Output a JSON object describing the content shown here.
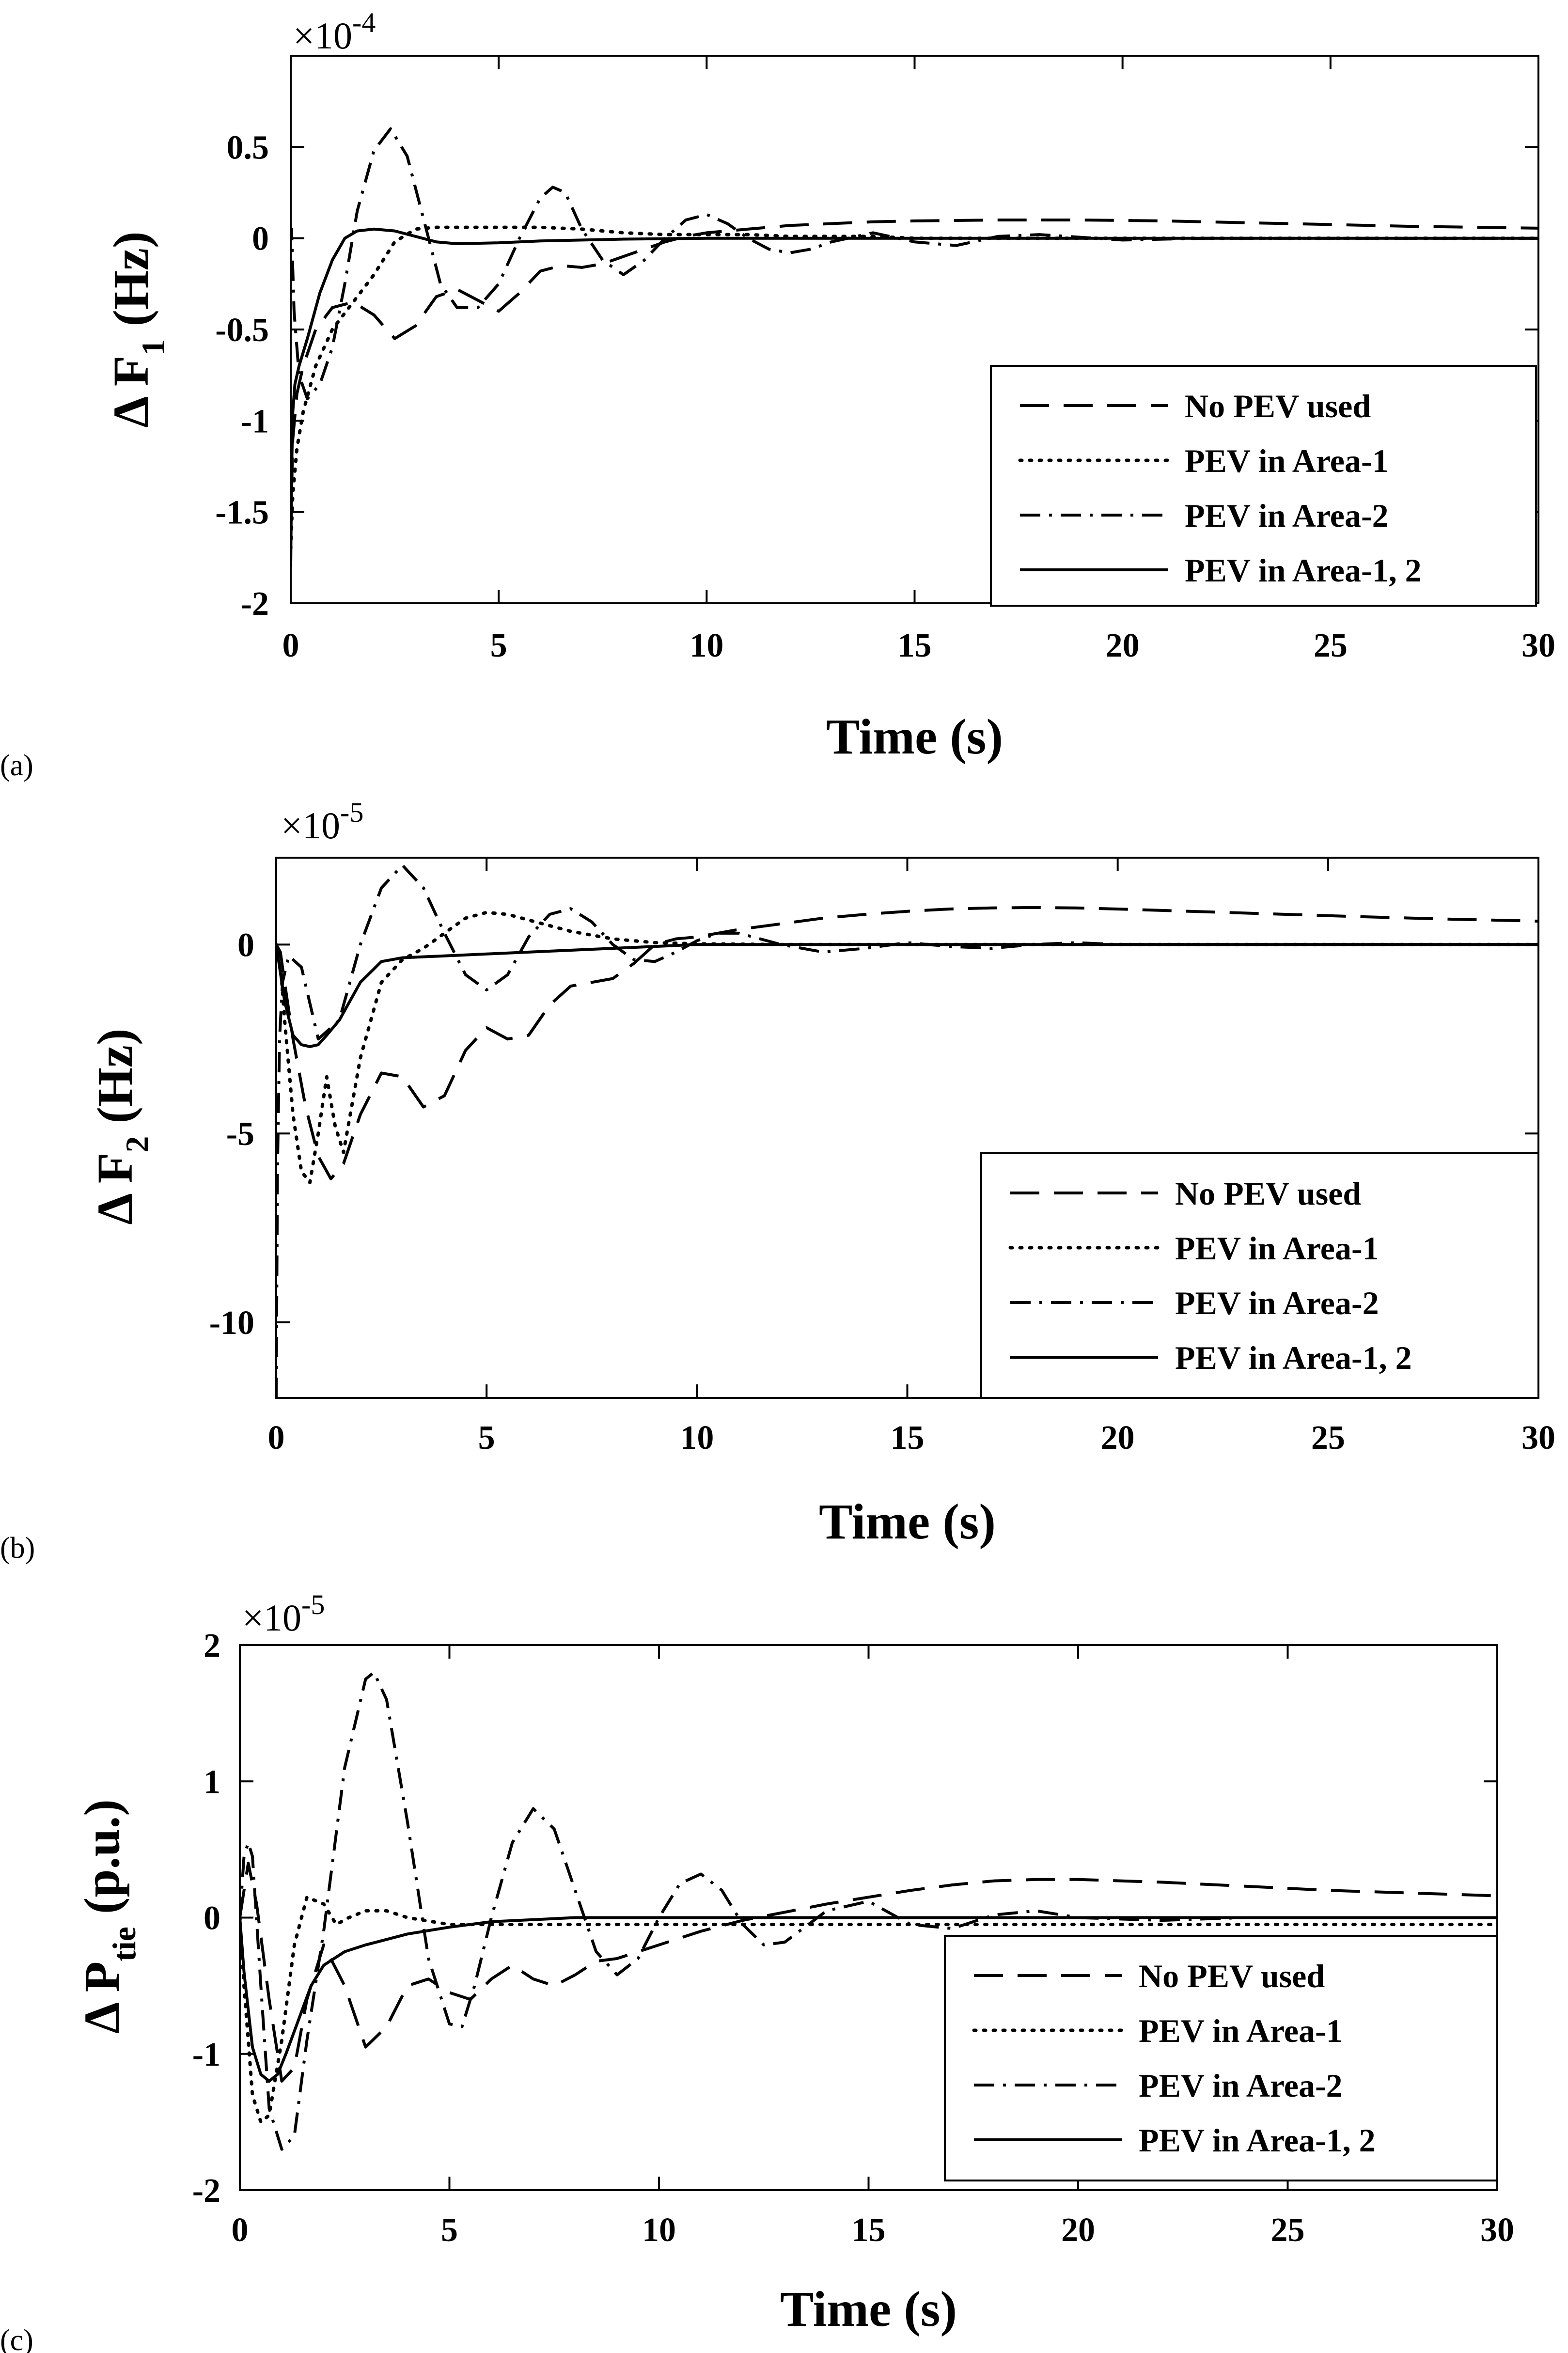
{
  "figure": {
    "line_styles": {
      "No PEV used": "dash",
      "PEV in Area-1": "dot",
      "PEV in Area-2": "dashdot",
      "PEV in Area-1, 2": "solid"
    }
  },
  "chart_data": [
    {
      "type": "line",
      "panel_label": "(a)",
      "xlabel": "Time (s)",
      "ylabel_main": "Δ F",
      "ylabel_sub": "1",
      "ylabel_unit": " (Hz)",
      "multiplier_base": "×10",
      "multiplier_exp": "-4",
      "xlim": [
        0,
        30
      ],
      "ylim": [
        -2,
        1
      ],
      "xticks": [
        0,
        5,
        10,
        15,
        20,
        25,
        30
      ],
      "yticks": [
        -2,
        -1.5,
        -1,
        -0.5,
        0,
        0.5
      ],
      "ytick_labels": [
        "-2",
        "-1.5",
        "-1",
        "-0.5",
        "0",
        "0.5"
      ],
      "legend": [
        "No PEV used",
        "PEV in Area-1",
        "PEV in Area-2",
        "PEV in Area-1, 2"
      ],
      "series": [
        {
          "name": "No PEV used",
          "style": "dash",
          "x": [
            0,
            0.05,
            0.15,
            0.3,
            0.6,
            1.0,
            1.5,
            2.0,
            2.5,
            3.0,
            3.5,
            4.0,
            4.5,
            5.0,
            5.5,
            6.0,
            6.5,
            7.0,
            7.5,
            8.0,
            8.5,
            9.0,
            9.5,
            10,
            11,
            12,
            13,
            14,
            15,
            17,
            19,
            21,
            23,
            25,
            27,
            30
          ],
          "y": [
            -1.6,
            -1.1,
            -0.85,
            -0.7,
            -0.5,
            -0.38,
            -0.35,
            -0.42,
            -0.55,
            -0.48,
            -0.32,
            -0.28,
            -0.34,
            -0.4,
            -0.3,
            -0.18,
            -0.15,
            -0.16,
            -0.14,
            -0.1,
            -0.06,
            -0.02,
            0.01,
            0.03,
            0.05,
            0.07,
            0.08,
            0.09,
            0.095,
            0.1,
            0.1,
            0.095,
            0.085,
            0.075,
            0.065,
            0.055
          ]
        },
        {
          "name": "PEV in Area-1",
          "style": "dot",
          "x": [
            0,
            0.05,
            0.15,
            0.3,
            0.6,
            1.0,
            1.5,
            2.0,
            2.5,
            3.0,
            3.5,
            4.0,
            5.0,
            6.0,
            7.0,
            8.0,
            9.0,
            10,
            11,
            12,
            13,
            14,
            15,
            17,
            20,
            25,
            30
          ],
          "y": [
            -1.7,
            -1.4,
            -1.15,
            -0.95,
            -0.7,
            -0.5,
            -0.35,
            -0.2,
            -0.02,
            0.05,
            0.06,
            0.06,
            0.06,
            0.06,
            0.05,
            0.03,
            0.02,
            0.02,
            0.02,
            0.01,
            0.01,
            0.01,
            0.0,
            0.0,
            0.0,
            0.0,
            0.0
          ]
        },
        {
          "name": "PEV in Area-2",
          "style": "dashdot",
          "x": [
            0,
            0.02,
            0.08,
            0.2,
            0.4,
            0.7,
            1.0,
            1.3,
            1.6,
            2.0,
            2.4,
            2.8,
            3.2,
            3.6,
            4.0,
            4.5,
            5.0,
            5.5,
            6.0,
            6.3,
            6.6,
            7.0,
            7.5,
            8.0,
            8.5,
            9.0,
            9.5,
            10.0,
            10.5,
            11,
            11.5,
            12,
            12.5,
            13,
            14,
            15,
            16,
            17,
            18,
            20,
            22,
            25,
            30
          ],
          "y": [
            0,
            0.05,
            -0.4,
            -0.75,
            -0.88,
            -0.8,
            -0.6,
            -0.25,
            0.15,
            0.48,
            0.6,
            0.45,
            0.1,
            -0.25,
            -0.38,
            -0.38,
            -0.25,
            0.0,
            0.22,
            0.28,
            0.25,
            0.05,
            -0.12,
            -0.2,
            -0.12,
            0.0,
            0.1,
            0.13,
            0.08,
            0.0,
            -0.06,
            -0.08,
            -0.06,
            -0.02,
            0.03,
            -0.02,
            -0.04,
            0.01,
            0.02,
            -0.01,
            0.0,
            0.0,
            0.0
          ]
        },
        {
          "name": "PEV in Area-1, 2",
          "style": "solid",
          "x": [
            0,
            0.02,
            0.05,
            0.1,
            0.2,
            0.4,
            0.7,
            1.0,
            1.3,
            1.6,
            2.0,
            2.5,
            3.0,
            3.5,
            4.0,
            5.0,
            6.0,
            7.0,
            8.0,
            10,
            12,
            15,
            20,
            25,
            30
          ],
          "y": [
            -1.8,
            -1.3,
            -0.95,
            -0.8,
            -0.7,
            -0.55,
            -0.3,
            -0.12,
            0.0,
            0.04,
            0.05,
            0.04,
            0.01,
            -0.02,
            -0.03,
            -0.025,
            -0.015,
            -0.01,
            -0.005,
            0.0,
            0.0,
            0.0,
            0.0,
            0.0,
            0.0
          ]
        }
      ]
    },
    {
      "type": "line",
      "panel_label": "(b)",
      "xlabel": "Time (s)",
      "ylabel_main": "Δ F",
      "ylabel_sub": "2",
      "ylabel_unit": " (Hz)",
      "multiplier_base": "×10",
      "multiplier_exp": "-5",
      "xlim": [
        0,
        30
      ],
      "ylim": [
        -12,
        2.3
      ],
      "xticks": [
        0,
        5,
        10,
        15,
        20,
        25,
        30
      ],
      "yticks": [
        -10,
        -5,
        0
      ],
      "ytick_labels": [
        "-10",
        "-5",
        "0"
      ],
      "legend": [
        "No PEV used",
        "PEV in Area-1",
        "PEV in Area-2",
        "PEV in Area-1, 2"
      ],
      "series": [
        {
          "name": "No PEV used",
          "style": "dash",
          "x": [
            0,
            0.1,
            0.2,
            0.4,
            0.7,
            1.0,
            1.3,
            1.6,
            2.0,
            2.5,
            3.0,
            3.5,
            4.0,
            4.5,
            5.0,
            5.5,
            6.0,
            6.5,
            7.0,
            7.5,
            8.0,
            8.5,
            9.0,
            9.5,
            10,
            11,
            12,
            13,
            14,
            15,
            16,
            17,
            18,
            19,
            20,
            22,
            24,
            26,
            28,
            30
          ],
          "y": [
            0,
            -0.2,
            -1.0,
            -2.5,
            -4.3,
            -5.6,
            -6.2,
            -5.8,
            -4.5,
            -3.4,
            -3.5,
            -4.3,
            -4.0,
            -2.8,
            -2.2,
            -2.5,
            -2.4,
            -1.6,
            -1.1,
            -1.0,
            -0.9,
            -0.5,
            0.0,
            0.15,
            0.2,
            0.4,
            0.55,
            0.7,
            0.8,
            0.88,
            0.94,
            0.97,
            0.98,
            0.97,
            0.94,
            0.87,
            0.8,
            0.73,
            0.67,
            0.62
          ]
        },
        {
          "name": "PEV in Area-1",
          "style": "dot",
          "x": [
            0,
            0.1,
            0.2,
            0.4,
            0.6,
            0.8,
            1.0,
            1.2,
            1.4,
            1.6,
            2.0,
            2.5,
            3.0,
            3.5,
            4.0,
            4.5,
            5.0,
            5.5,
            6.0,
            7.0,
            8.0,
            9.0,
            10,
            12,
            15,
            20,
            25,
            30
          ],
          "y": [
            0,
            -0.5,
            -2.0,
            -4.5,
            -6.0,
            -6.3,
            -5.0,
            -3.5,
            -4.8,
            -5.5,
            -3.0,
            -1.0,
            -0.4,
            -0.1,
            0.3,
            0.7,
            0.85,
            0.8,
            0.65,
            0.35,
            0.15,
            0.05,
            0.02,
            0.0,
            0.0,
            0.0,
            0.0,
            0.0
          ]
        },
        {
          "name": "PEV in Area-2",
          "style": "dashdot",
          "x": [
            0,
            0.01,
            0.03,
            0.08,
            0.15,
            0.3,
            0.6,
            1.0,
            1.5,
            2.0,
            2.5,
            3.0,
            3.5,
            4.0,
            4.5,
            5.0,
            5.5,
            6.0,
            6.5,
            7.0,
            7.5,
            8.0,
            8.5,
            9.0,
            9.5,
            10,
            10.5,
            11,
            12,
            13,
            14,
            15,
            16,
            17,
            18,
            19,
            20,
            22,
            25,
            30
          ],
          "y": [
            -12,
            -10,
            -6,
            -2.5,
            -1.0,
            -0.3,
            -0.6,
            -2.5,
            -2.0,
            0.0,
            1.5,
            2.1,
            1.5,
            0.3,
            -0.8,
            -1.2,
            -0.8,
            0.2,
            0.8,
            0.95,
            0.6,
            0.0,
            -0.4,
            -0.45,
            -0.2,
            0.1,
            0.3,
            0.3,
            0.0,
            -0.2,
            -0.1,
            0.05,
            -0.05,
            -0.1,
            0.0,
            0.05,
            0.0,
            0.0,
            0.0,
            0.0
          ]
        },
        {
          "name": "PEV in Area-1, 2",
          "style": "solid",
          "x": [
            0,
            0.2,
            0.4,
            0.6,
            0.8,
            1.0,
            1.2,
            1.5,
            2.0,
            2.5,
            3.0,
            4.0,
            5.0,
            6.0,
            8.0,
            10,
            12,
            15,
            20,
            25,
            30
          ],
          "y": [
            0,
            -1.5,
            -2.4,
            -2.65,
            -2.7,
            -2.65,
            -2.4,
            -2.0,
            -1.0,
            -0.45,
            -0.35,
            -0.3,
            -0.25,
            -0.2,
            -0.1,
            0.0,
            0.0,
            0.0,
            0.0,
            0.0,
            0.0
          ]
        }
      ]
    },
    {
      "type": "line",
      "panel_label": "(c)",
      "xlabel": "Time (s)",
      "ylabel_main": "Δ P",
      "ylabel_sub": "tie",
      "ylabel_unit": " (p.u.)",
      "multiplier_base": "×10",
      "multiplier_exp": "-5",
      "xlim": [
        0,
        30
      ],
      "ylim": [
        -2,
        2
      ],
      "xticks": [
        0,
        5,
        10,
        15,
        20,
        25,
        30
      ],
      "yticks": [
        -2,
        -1,
        0,
        1,
        2
      ],
      "ytick_labels": [
        "-2",
        "-1",
        "0",
        "1",
        "2"
      ],
      "legend": [
        "No PEV used",
        "PEV in Area-1",
        "PEV in Area-2",
        "PEV in Area-1, 2"
      ],
      "series": [
        {
          "name": "No PEV used",
          "style": "dash",
          "x": [
            0,
            0.1,
            0.2,
            0.4,
            0.7,
            1.0,
            1.3,
            1.6,
            2.0,
            2.5,
            3.0,
            3.5,
            4.0,
            4.5,
            5.0,
            5.5,
            6.0,
            6.5,
            7.0,
            7.5,
            8.0,
            8.5,
            9.0,
            10,
            11,
            12,
            13,
            14,
            15,
            16,
            17,
            18,
            19,
            20,
            22,
            24,
            26,
            28,
            30
          ],
          "y": [
            0,
            0.2,
            0.4,
            0.1,
            -0.6,
            -1.2,
            -1.1,
            -0.6,
            -0.2,
            -0.5,
            -0.95,
            -0.8,
            -0.5,
            -0.45,
            -0.55,
            -0.6,
            -0.45,
            -0.35,
            -0.45,
            -0.5,
            -0.42,
            -0.32,
            -0.3,
            -0.2,
            -0.1,
            -0.02,
            0.04,
            0.1,
            0.15,
            0.2,
            0.24,
            0.27,
            0.28,
            0.28,
            0.26,
            0.23,
            0.2,
            0.18,
            0.16
          ]
        },
        {
          "name": "PEV in Area-1",
          "style": "dot",
          "x": [
            0,
            0.1,
            0.3,
            0.5,
            0.7,
            1.0,
            1.3,
            1.6,
            2.0,
            2.3,
            2.6,
            3.0,
            3.5,
            4.0,
            5.0,
            6.0,
            8.0,
            10,
            15,
            20,
            25,
            30
          ],
          "y": [
            0,
            -0.5,
            -1.3,
            -1.5,
            -1.45,
            -0.9,
            -0.2,
            0.15,
            0.1,
            -0.05,
            0.0,
            0.05,
            0.05,
            0.0,
            -0.05,
            -0.05,
            -0.05,
            -0.05,
            -0.05,
            -0.05,
            -0.05,
            -0.05
          ]
        },
        {
          "name": "PEV in Area-2",
          "style": "dashdot",
          "x": [
            0,
            0.1,
            0.2,
            0.3,
            0.5,
            0.7,
            1.0,
            1.3,
            1.6,
            2.0,
            2.5,
            3.0,
            3.2,
            3.5,
            4.0,
            4.5,
            5.0,
            5.3,
            5.6,
            6.0,
            6.5,
            7.0,
            7.5,
            8.0,
            8.5,
            9.0,
            9.5,
            10,
            10.5,
            11,
            11.5,
            12,
            12.5,
            13,
            14,
            15,
            16,
            17,
            18,
            19,
            20,
            22,
            24,
            26,
            30
          ],
          "y": [
            0,
            0.45,
            0.55,
            0.45,
            -0.5,
            -1.4,
            -1.7,
            -1.6,
            -0.9,
            -0.1,
            1.1,
            1.75,
            1.8,
            1.6,
            0.7,
            -0.3,
            -0.78,
            -0.8,
            -0.5,
            0.0,
            0.55,
            0.8,
            0.65,
            0.2,
            -0.25,
            -0.42,
            -0.3,
            0.0,
            0.25,
            0.32,
            0.2,
            -0.05,
            -0.2,
            -0.18,
            0.05,
            0.12,
            -0.05,
            -0.08,
            0.02,
            0.05,
            0.0,
            -0.02,
            0.0,
            0.0,
            0.0
          ]
        },
        {
          "name": "PEV in Area-1, 2",
          "style": "solid",
          "x": [
            0,
            0.1,
            0.3,
            0.5,
            0.7,
            0.9,
            1.1,
            1.4,
            1.7,
            2.0,
            2.5,
            3.0,
            4.0,
            5.0,
            6.0,
            8.0,
            10,
            12,
            15,
            20,
            25,
            30
          ],
          "y": [
            0,
            -0.4,
            -0.95,
            -1.15,
            -1.2,
            -1.15,
            -1.0,
            -0.75,
            -0.5,
            -0.35,
            -0.25,
            -0.2,
            -0.12,
            -0.07,
            -0.03,
            0.0,
            0.0,
            0.0,
            0.0,
            0.0,
            0.0,
            0.0
          ]
        }
      ]
    }
  ]
}
